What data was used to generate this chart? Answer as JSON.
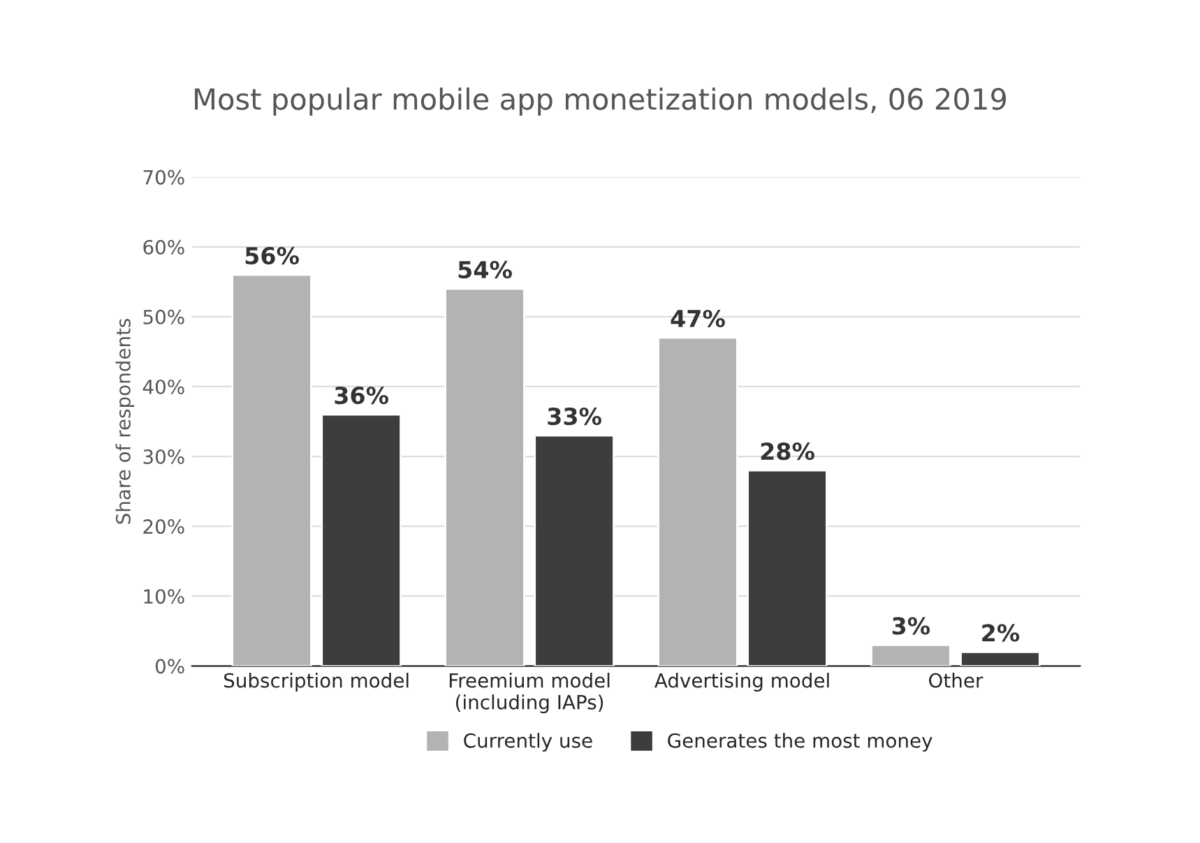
{
  "chart_data": {
    "type": "bar",
    "title": "Most popular mobile app monetization models, 06 2019",
    "ylabel": "Share of respondents",
    "categories": [
      "Subscription model",
      "Freemium model\n(including IAPs)",
      "Advertising model",
      "Other"
    ],
    "series": [
      {
        "name": "Currently use",
        "color": "#b3b3b3",
        "values": [
          56,
          54,
          47,
          3
        ],
        "value_labels": [
          "56%",
          "54%",
          "47%",
          "3%"
        ]
      },
      {
        "name": "Generates the most money",
        "color": "#3d3d3d",
        "values": [
          36,
          33,
          28,
          2
        ],
        "value_labels": [
          "36%",
          "33%",
          "28%",
          "2%"
        ]
      }
    ],
    "ylim": [
      0,
      70
    ],
    "yticks": [
      {
        "value": 0,
        "label": "0%"
      },
      {
        "value": 10,
        "label": "10%"
      },
      {
        "value": 20,
        "label": "20%"
      },
      {
        "value": 30,
        "label": "30%"
      },
      {
        "value": 40,
        "label": "40%"
      },
      {
        "value": 50,
        "label": "50%"
      },
      {
        "value": 60,
        "label": "60%"
      },
      {
        "value": 70,
        "label": "70%"
      }
    ],
    "grid": "y",
    "legend": "bottom"
  }
}
